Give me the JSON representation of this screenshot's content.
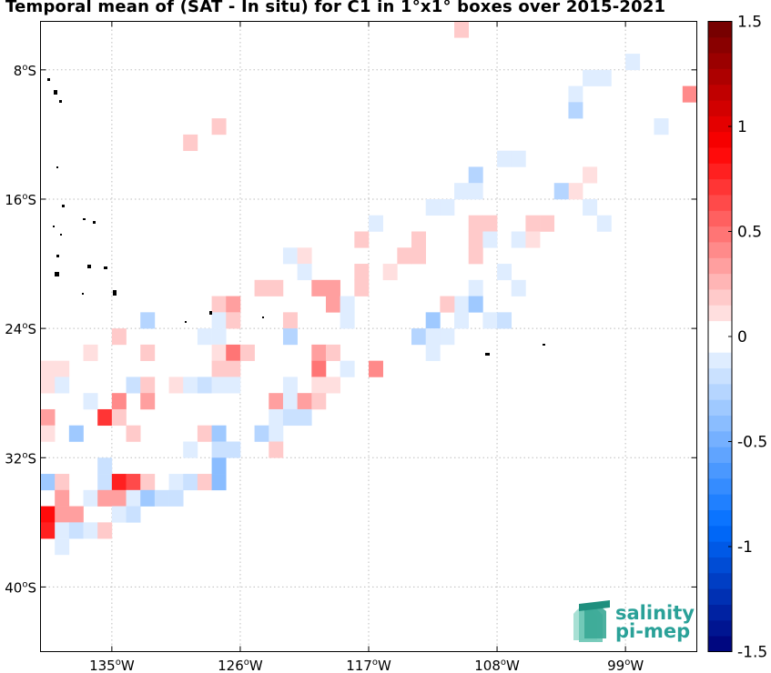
{
  "title": "Temporal mean of (SAT - In situ) for C1 in 1°x1° boxes over 2015-2021",
  "map": {
    "lon_range": [
      -140,
      -94
    ],
    "lat_range": [
      -44,
      -5
    ],
    "x_ticks": [
      {
        "lon": -135,
        "label": "135°W"
      },
      {
        "lon": -126,
        "label": "126°W"
      },
      {
        "lon": -117,
        "label": "117°W"
      },
      {
        "lon": -108,
        "label": "108°W"
      },
      {
        "lon": -99,
        "label": "99°W"
      }
    ],
    "y_ticks": [
      {
        "lat": -8,
        "label": "8°S"
      },
      {
        "lat": -16,
        "label": "16°S"
      },
      {
        "lat": -24,
        "label": "24°S"
      },
      {
        "lat": -32,
        "label": "32°S"
      },
      {
        "lat": -40,
        "label": "40°S"
      }
    ],
    "grid": true
  },
  "colorbar": {
    "range": [
      -1.5,
      1.5
    ],
    "levels": 40,
    "tick_labels": [
      {
        "value": 1.5,
        "label": "1.5"
      },
      {
        "value": 1,
        "label": "1"
      },
      {
        "value": 0.5,
        "label": "0.5"
      },
      {
        "value": 0,
        "label": "0"
      },
      {
        "value": -0.5,
        "label": "-0.5"
      },
      {
        "value": -1,
        "label": "-1"
      },
      {
        "value": -1.5,
        "label": "-1.5"
      }
    ]
  },
  "logo": {
    "line1": "salinity",
    "line2": "pi-mep"
  },
  "chart_data": {
    "type": "heatmap",
    "title": "Temporal mean of (SAT - In situ) for C1 in 1°x1° boxes over 2015-2021",
    "cell_size_deg": 1,
    "value_range": [
      -1.5,
      1.5
    ],
    "cells": [
      {
        "lon": -110.5,
        "lat": -5.5,
        "v": 0.2
      },
      {
        "lon": -98.5,
        "lat": -7.5,
        "v": -0.1
      },
      {
        "lon": -100.5,
        "lat": -8.5,
        "v": -0.1
      },
      {
        "lon": -101.5,
        "lat": -8.5,
        "v": -0.1
      },
      {
        "lon": -102.5,
        "lat": -9.5,
        "v": -0.1
      },
      {
        "lon": -94.5,
        "lat": -9.5,
        "v": 0.4
      },
      {
        "lon": -102.5,
        "lat": -10.5,
        "v": -0.25
      },
      {
        "lon": -96.5,
        "lat": -11.5,
        "v": -0.1
      },
      {
        "lon": -127.5,
        "lat": -11.5,
        "v": 0.2
      },
      {
        "lon": -129.5,
        "lat": -12.5,
        "v": 0.2
      },
      {
        "lon": -107.5,
        "lat": -13.5,
        "v": -0.1
      },
      {
        "lon": -106.5,
        "lat": -13.5,
        "v": -0.1
      },
      {
        "lon": -109.5,
        "lat": -14.5,
        "v": -0.25
      },
      {
        "lon": -101.5,
        "lat": -14.5,
        "v": 0.15
      },
      {
        "lon": -110.5,
        "lat": -15.5,
        "v": -0.1
      },
      {
        "lon": -109.5,
        "lat": -15.5,
        "v": -0.1
      },
      {
        "lon": -102.5,
        "lat": -15.5,
        "v": 0.15
      },
      {
        "lon": -103.5,
        "lat": -15.5,
        "v": -0.25
      },
      {
        "lon": -112.5,
        "lat": -16.5,
        "v": -0.1
      },
      {
        "lon": -111.5,
        "lat": -16.5,
        "v": -0.1
      },
      {
        "lon": -101.5,
        "lat": -16.5,
        "v": -0.15
      },
      {
        "lon": -116.5,
        "lat": -17.5,
        "v": -0.1
      },
      {
        "lon": -109.5,
        "lat": -17.5,
        "v": 0.2
      },
      {
        "lon": -108.5,
        "lat": -17.5,
        "v": 0.2
      },
      {
        "lon": -105.5,
        "lat": -17.5,
        "v": 0.2
      },
      {
        "lon": -104.5,
        "lat": -17.5,
        "v": 0.2
      },
      {
        "lon": -100.5,
        "lat": -17.5,
        "v": -0.15
      },
      {
        "lon": -117.5,
        "lat": -18.5,
        "v": 0.2
      },
      {
        "lon": -113.5,
        "lat": -18.5,
        "v": 0.2
      },
      {
        "lon": -109.5,
        "lat": -18.5,
        "v": 0.2
      },
      {
        "lon": -108.5,
        "lat": -18.5,
        "v": -0.1
      },
      {
        "lon": -106.5,
        "lat": -18.5,
        "v": -0.1
      },
      {
        "lon": -105.5,
        "lat": -18.5,
        "v": 0.15
      },
      {
        "lon": -114.5,
        "lat": -19.5,
        "v": 0.2
      },
      {
        "lon": -113.5,
        "lat": -19.5,
        "v": 0.2
      },
      {
        "lon": -109.5,
        "lat": -19.5,
        "v": 0.2
      },
      {
        "lon": -122.5,
        "lat": -19.5,
        "v": -0.1
      },
      {
        "lon": -121.5,
        "lat": -19.5,
        "v": 0.15
      },
      {
        "lon": -121.5,
        "lat": -20.5,
        "v": -0.1
      },
      {
        "lon": -117.5,
        "lat": -20.5,
        "v": 0.2
      },
      {
        "lon": -115.5,
        "lat": -20.5,
        "v": 0.15
      },
      {
        "lon": -107.5,
        "lat": -20.5,
        "v": -0.15
      },
      {
        "lon": -124.5,
        "lat": -21.5,
        "v": 0.2
      },
      {
        "lon": -123.5,
        "lat": -21.5,
        "v": 0.2
      },
      {
        "lon": -120.5,
        "lat": -21.5,
        "v": 0.35
      },
      {
        "lon": -119.5,
        "lat": -21.5,
        "v": 0.35
      },
      {
        "lon": -117.5,
        "lat": -21.5,
        "v": 0.2
      },
      {
        "lon": -109.5,
        "lat": -21.5,
        "v": -0.1
      },
      {
        "lon": -106.5,
        "lat": -21.5,
        "v": -0.1
      },
      {
        "lon": -119.5,
        "lat": -22.5,
        "v": 0.35
      },
      {
        "lon": -118.5,
        "lat": -22.5,
        "v": -0.1
      },
      {
        "lon": -110.5,
        "lat": -22.5,
        "v": -0.1
      },
      {
        "lon": -109.5,
        "lat": -22.5,
        "v": -0.35
      },
      {
        "lon": -111.5,
        "lat": -22.5,
        "v": 0.2
      },
      {
        "lon": -127.5,
        "lat": -22.5,
        "v": 0.2
      },
      {
        "lon": -126.5,
        "lat": -22.5,
        "v": 0.35
      },
      {
        "lon": -132.5,
        "lat": -23.5,
        "v": -0.25
      },
      {
        "lon": -127.5,
        "lat": -23.5,
        "v": -0.1
      },
      {
        "lon": -126.5,
        "lat": -23.5,
        "v": 0.2
      },
      {
        "lon": -122.5,
        "lat": -23.5,
        "v": 0.2
      },
      {
        "lon": -118.5,
        "lat": -23.5,
        "v": -0.1
      },
      {
        "lon": -112.5,
        "lat": -23.5,
        "v": -0.3
      },
      {
        "lon": -110.5,
        "lat": -23.5,
        "v": -0.1
      },
      {
        "lon": -108.5,
        "lat": -23.5,
        "v": -0.1
      },
      {
        "lon": -107.5,
        "lat": -23.5,
        "v": -0.2
      },
      {
        "lon": -134.5,
        "lat": -24.5,
        "v": 0.2
      },
      {
        "lon": -128.5,
        "lat": -24.5,
        "v": -0.1
      },
      {
        "lon": -127.5,
        "lat": -24.5,
        "v": -0.1
      },
      {
        "lon": -122.5,
        "lat": -24.5,
        "v": -0.25
      },
      {
        "lon": -113.5,
        "lat": -24.5,
        "v": -0.25
      },
      {
        "lon": -112.5,
        "lat": -24.5,
        "v": -0.1
      },
      {
        "lon": -111.5,
        "lat": -24.5,
        "v": -0.1
      },
      {
        "lon": -136.5,
        "lat": -25.5,
        "v": 0.15
      },
      {
        "lon": -132.5,
        "lat": -25.5,
        "v": 0.2
      },
      {
        "lon": -127.5,
        "lat": -25.5,
        "v": 0.15
      },
      {
        "lon": -126.5,
        "lat": -25.5,
        "v": 0.45
      },
      {
        "lon": -125.5,
        "lat": -25.5,
        "v": 0.2
      },
      {
        "lon": -120.5,
        "lat": -25.5,
        "v": 0.35
      },
      {
        "lon": -119.5,
        "lat": -25.5,
        "v": 0.2
      },
      {
        "lon": -112.5,
        "lat": -25.5,
        "v": -0.1
      },
      {
        "lon": -139.5,
        "lat": -26.5,
        "v": 0.15
      },
      {
        "lon": -138.5,
        "lat": -26.5,
        "v": 0.15
      },
      {
        "lon": -127.5,
        "lat": -26.5,
        "v": 0.2
      },
      {
        "lon": -126.5,
        "lat": -26.5,
        "v": 0.2
      },
      {
        "lon": -120.5,
        "lat": -26.5,
        "v": 0.5
      },
      {
        "lon": -118.5,
        "lat": -26.5,
        "v": -0.1
      },
      {
        "lon": -116.5,
        "lat": -26.5,
        "v": 0.4
      },
      {
        "lon": -139.5,
        "lat": -27.5,
        "v": 0.15
      },
      {
        "lon": -138.5,
        "lat": -27.5,
        "v": -0.15
      },
      {
        "lon": -133.5,
        "lat": -27.5,
        "v": -0.2
      },
      {
        "lon": -132.5,
        "lat": -27.5,
        "v": 0.2
      },
      {
        "lon": -130.5,
        "lat": -27.5,
        "v": 0.15
      },
      {
        "lon": -129.5,
        "lat": -27.5,
        "v": -0.1
      },
      {
        "lon": -128.5,
        "lat": -27.5,
        "v": -0.2
      },
      {
        "lon": -127.5,
        "lat": -27.5,
        "v": -0.1
      },
      {
        "lon": -126.5,
        "lat": -27.5,
        "v": -0.1
      },
      {
        "lon": -122.5,
        "lat": -27.5,
        "v": -0.1
      },
      {
        "lon": -120.5,
        "lat": -27.5,
        "v": 0.15
      },
      {
        "lon": -119.5,
        "lat": -27.5,
        "v": 0.15
      },
      {
        "lon": -136.5,
        "lat": -28.5,
        "v": -0.1
      },
      {
        "lon": -134.5,
        "lat": -28.5,
        "v": 0.4
      },
      {
        "lon": -132.5,
        "lat": -28.5,
        "v": 0.3
      },
      {
        "lon": -123.5,
        "lat": -28.5,
        "v": 0.35
      },
      {
        "lon": -122.5,
        "lat": -28.5,
        "v": -0.1
      },
      {
        "lon": -121.5,
        "lat": -28.5,
        "v": 0.35
      },
      {
        "lon": -120.5,
        "lat": -28.5,
        "v": 0.2
      },
      {
        "lon": -139.5,
        "lat": -29.5,
        "v": 0.35
      },
      {
        "lon": -135.5,
        "lat": -29.5,
        "v": 0.7
      },
      {
        "lon": -134.5,
        "lat": -29.5,
        "v": 0.2
      },
      {
        "lon": -123.5,
        "lat": -29.5,
        "v": -0.1
      },
      {
        "lon": -122.5,
        "lat": -29.5,
        "v": -0.2
      },
      {
        "lon": -121.5,
        "lat": -29.5,
        "v": -0.2
      },
      {
        "lon": -139.5,
        "lat": -30.5,
        "v": 0.15
      },
      {
        "lon": -137.5,
        "lat": -30.5,
        "v": -0.3
      },
      {
        "lon": -133.5,
        "lat": -30.5,
        "v": 0.2
      },
      {
        "lon": -128.5,
        "lat": -30.5,
        "v": 0.2
      },
      {
        "lon": -127.5,
        "lat": -30.5,
        "v": -0.3
      },
      {
        "lon": -124.5,
        "lat": -30.5,
        "v": -0.25
      },
      {
        "lon": -123.5,
        "lat": -30.5,
        "v": -0.1
      },
      {
        "lon": -129.5,
        "lat": -31.5,
        "v": -0.1
      },
      {
        "lon": -127.5,
        "lat": -31.5,
        "v": -0.2
      },
      {
        "lon": -126.5,
        "lat": -31.5,
        "v": -0.2
      },
      {
        "lon": -123.5,
        "lat": -31.5,
        "v": 0.2
      },
      {
        "lon": -135.5,
        "lat": -32.5,
        "v": -0.2
      },
      {
        "lon": -127.5,
        "lat": -32.5,
        "v": -0.4
      },
      {
        "lon": -139.5,
        "lat": -33.5,
        "v": -0.3
      },
      {
        "lon": -138.5,
        "lat": -33.5,
        "v": 0.2
      },
      {
        "lon": -135.5,
        "lat": -33.5,
        "v": -0.2
      },
      {
        "lon": -134.5,
        "lat": -33.5,
        "v": 0.75
      },
      {
        "lon": -133.5,
        "lat": -33.5,
        "v": 0.6
      },
      {
        "lon": -132.5,
        "lat": -33.5,
        "v": 0.2
      },
      {
        "lon": -130.5,
        "lat": -33.5,
        "v": -0.1
      },
      {
        "lon": -129.5,
        "lat": -33.5,
        "v": -0.2
      },
      {
        "lon": -128.5,
        "lat": -33.5,
        "v": 0.2
      },
      {
        "lon": -127.5,
        "lat": -33.5,
        "v": -0.4
      },
      {
        "lon": -138.5,
        "lat": -34.5,
        "v": 0.35
      },
      {
        "lon": -136.5,
        "lat": -34.5,
        "v": -0.1
      },
      {
        "lon": -135.5,
        "lat": -34.5,
        "v": 0.35
      },
      {
        "lon": -134.5,
        "lat": -34.5,
        "v": 0.35
      },
      {
        "lon": -133.5,
        "lat": -34.5,
        "v": -0.1
      },
      {
        "lon": -132.5,
        "lat": -34.5,
        "v": -0.3
      },
      {
        "lon": -131.5,
        "lat": -34.5,
        "v": -0.2
      },
      {
        "lon": -130.5,
        "lat": -34.5,
        "v": -0.2
      },
      {
        "lon": -139.5,
        "lat": -35.5,
        "v": 0.9
      },
      {
        "lon": -138.5,
        "lat": -35.5,
        "v": 0.35
      },
      {
        "lon": -137.5,
        "lat": -35.5,
        "v": 0.35
      },
      {
        "lon": -134.5,
        "lat": -35.5,
        "v": -0.1
      },
      {
        "lon": -133.5,
        "lat": -35.5,
        "v": -0.2
      },
      {
        "lon": -139.5,
        "lat": -36.5,
        "v": 0.75
      },
      {
        "lon": -138.5,
        "lat": -36.5,
        "v": -0.15
      },
      {
        "lon": -137.5,
        "lat": -36.5,
        "v": -0.2
      },
      {
        "lon": -136.5,
        "lat": -36.5,
        "v": -0.15
      },
      {
        "lon": -135.5,
        "lat": -36.5,
        "v": 0.2
      },
      {
        "lon": -138.5,
        "lat": -37.5,
        "v": -0.1
      }
    ]
  }
}
